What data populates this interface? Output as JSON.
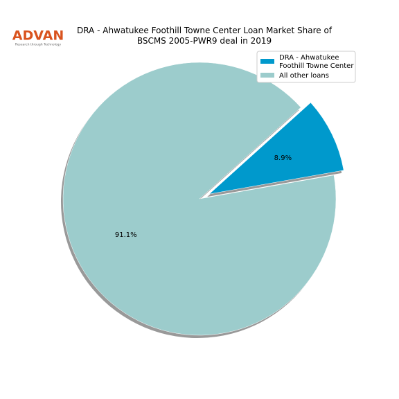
{
  "logo": {
    "name": "ADVAN",
    "tagline": "Research through Technology"
  },
  "chart_data": {
    "type": "pie",
    "title": "DRA - Ahwatukee Foothill Towne Center Loan Market Share of\nBSCMS 2005-PWR9 deal in 2019",
    "categories": [
      "DRA - Ahwatukee\nFoothill Towne Center",
      "All other loans"
    ],
    "values": [
      8.9,
      91.1
    ],
    "value_labels": [
      "8.9%",
      "91.1%"
    ],
    "colors": [
      "#0099cc",
      "#9ccccc"
    ],
    "legend": "upper right"
  }
}
